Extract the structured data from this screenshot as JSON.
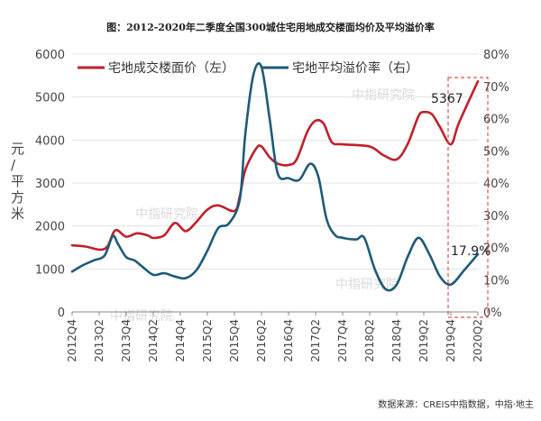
{
  "chart_data": {
    "type": "line",
    "title": "图：2012-2020年二季度全国300城住宅用地成交楼面均价及平均溢价率",
    "ylabel_left": "元/平方米",
    "ylim_left": [
      0,
      6000
    ],
    "yticks_left": [
      "0",
      "1000",
      "2000",
      "3000",
      "4000",
      "5000",
      "6000"
    ],
    "ylim_right": [
      0,
      80
    ],
    "yticks_right": [
      "0%",
      "10%",
      "20%",
      "30%",
      "40%",
      "50%",
      "60%",
      "70%",
      "80%"
    ],
    "xticks": [
      "2012Q4",
      "2013Q2",
      "2013Q4",
      "2014Q2",
      "2014Q4",
      "2015Q2",
      "2015Q4",
      "2016Q2",
      "2016Q4",
      "2017Q2",
      "2017Q4",
      "2018Q2",
      "2018Q4",
      "2019Q2",
      "2019Q4",
      "2020Q2"
    ],
    "legend_position": "top",
    "series": [
      {
        "name": "宅地成交楼面价（左）",
        "axis": "left",
        "color": "#c0202a",
        "points": [
          [
            0,
            1550
          ],
          [
            0.5,
            1520
          ],
          [
            1,
            1450
          ],
          [
            1.3,
            1520
          ],
          [
            1.6,
            1900
          ],
          [
            2,
            1750
          ],
          [
            2.4,
            1830
          ],
          [
            2.8,
            1780
          ],
          [
            3,
            1720
          ],
          [
            3.4,
            1780
          ],
          [
            3.8,
            2070
          ],
          [
            4.2,
            1880
          ],
          [
            4.6,
            2100
          ],
          [
            5,
            2380
          ],
          [
            5.4,
            2480
          ],
          [
            6,
            2350
          ],
          [
            6.2,
            2700
          ],
          [
            6.4,
            3300
          ],
          [
            6.8,
            3800
          ],
          [
            7,
            3850
          ],
          [
            7.3,
            3600
          ],
          [
            7.6,
            3450
          ],
          [
            8,
            3420
          ],
          [
            8.3,
            3550
          ],
          [
            8.7,
            4200
          ],
          [
            9,
            4450
          ],
          [
            9.3,
            4380
          ],
          [
            9.6,
            3950
          ],
          [
            10,
            3900
          ],
          [
            11,
            3850
          ],
          [
            11.5,
            3650
          ],
          [
            12,
            3550
          ],
          [
            12.4,
            3900
          ],
          [
            12.8,
            4550
          ],
          [
            13,
            4650
          ],
          [
            13.3,
            4600
          ],
          [
            13.6,
            4300
          ],
          [
            14,
            3900
          ],
          [
            14.3,
            4400
          ],
          [
            15,
            5367
          ]
        ]
      },
      {
        "name": "宅地平均溢价率（右）",
        "axis": "right",
        "color": "#1e5a7a",
        "points": [
          [
            0,
            12.5
          ],
          [
            0.4,
            14.5
          ],
          [
            0.8,
            16.0
          ],
          [
            1.2,
            17.5
          ],
          [
            1.5,
            23.5
          ],
          [
            1.7,
            21.0
          ],
          [
            2,
            17.0
          ],
          [
            2.3,
            16.0
          ],
          [
            2.6,
            14.0
          ],
          [
            3,
            11.5
          ],
          [
            3.4,
            12.0
          ],
          [
            3.8,
            11.0
          ],
          [
            4.2,
            10.5
          ],
          [
            4.6,
            13.0
          ],
          [
            5,
            19.0
          ],
          [
            5.4,
            26.0
          ],
          [
            5.8,
            27.5
          ],
          [
            6.2,
            35.0
          ],
          [
            6.4,
            55.0
          ],
          [
            6.7,
            73.5
          ],
          [
            7,
            76.0
          ],
          [
            7.3,
            60.0
          ],
          [
            7.6,
            43.0
          ],
          [
            8,
            41.5
          ],
          [
            8.4,
            41.0
          ],
          [
            8.8,
            46.0
          ],
          [
            9.1,
            42.0
          ],
          [
            9.4,
            29.0
          ],
          [
            9.7,
            24.0
          ],
          [
            10,
            23.0
          ],
          [
            10.5,
            22.5
          ],
          [
            10.8,
            23.0
          ],
          [
            11.2,
            13.0
          ],
          [
            11.6,
            7.0
          ],
          [
            12,
            8.5
          ],
          [
            12.4,
            17.0
          ],
          [
            12.8,
            23.0
          ],
          [
            13.2,
            18.0
          ],
          [
            13.6,
            11.0
          ],
          [
            14,
            8.5
          ],
          [
            14.5,
            13.0
          ],
          [
            15,
            17.9
          ]
        ]
      }
    ],
    "annotations": [
      {
        "text": "5367",
        "series": 0
      },
      {
        "text": "17.9%",
        "series": 1
      }
    ],
    "source": "数据来源：CREIS中指数据，中指·地主",
    "watermark": "中指研究院"
  }
}
